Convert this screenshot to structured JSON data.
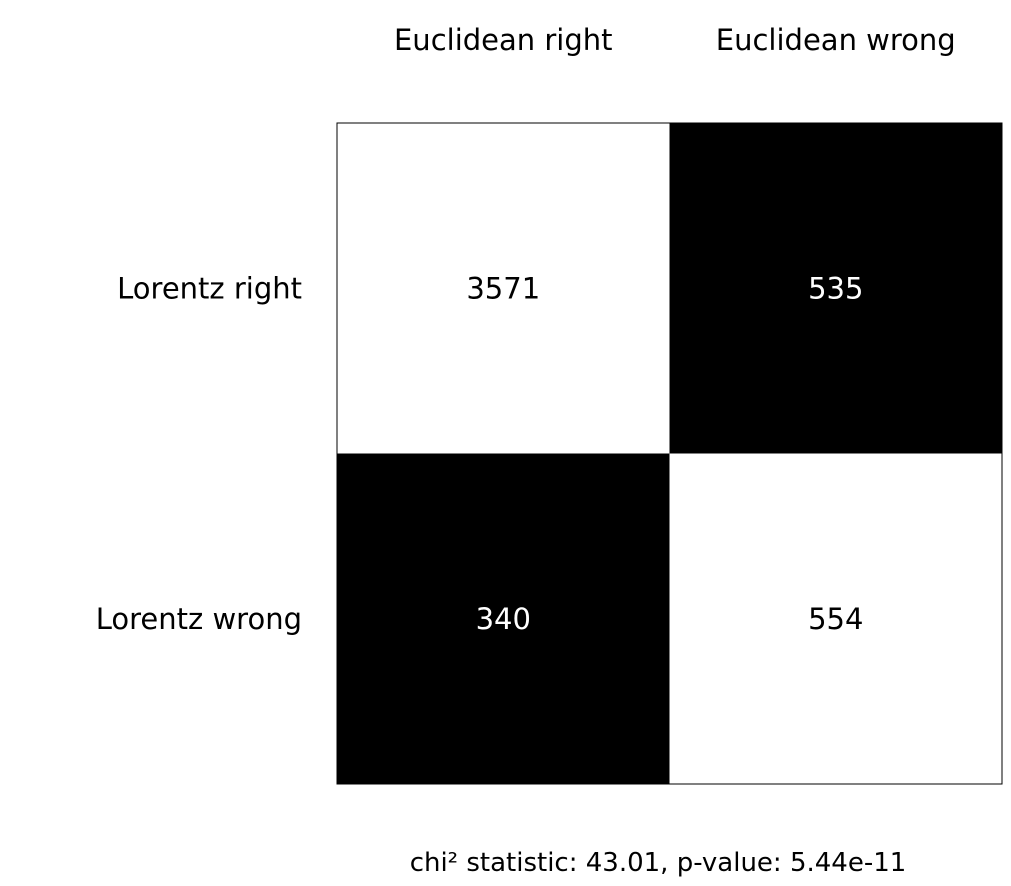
{
  "chart_data": {
    "type": "heatmap",
    "title": "",
    "x_labels": [
      "Euclidean right",
      "Euclidean wrong"
    ],
    "y_labels": [
      "Lorentz right",
      "Lorentz wrong"
    ],
    "values": [
      [
        3571,
        535
      ],
      [
        340,
        554
      ]
    ],
    "cell_colors": [
      [
        "#ffffff",
        "#000000"
      ],
      [
        "#000000",
        "#ffffff"
      ]
    ],
    "text_colors": [
      [
        "#000000",
        "#ffffff"
      ],
      [
        "#ffffff",
        "#000000"
      ]
    ],
    "x_label_position": "top",
    "grid": false,
    "caption": "chi² statistic: 43.01, p-value: 5.44e-11"
  }
}
